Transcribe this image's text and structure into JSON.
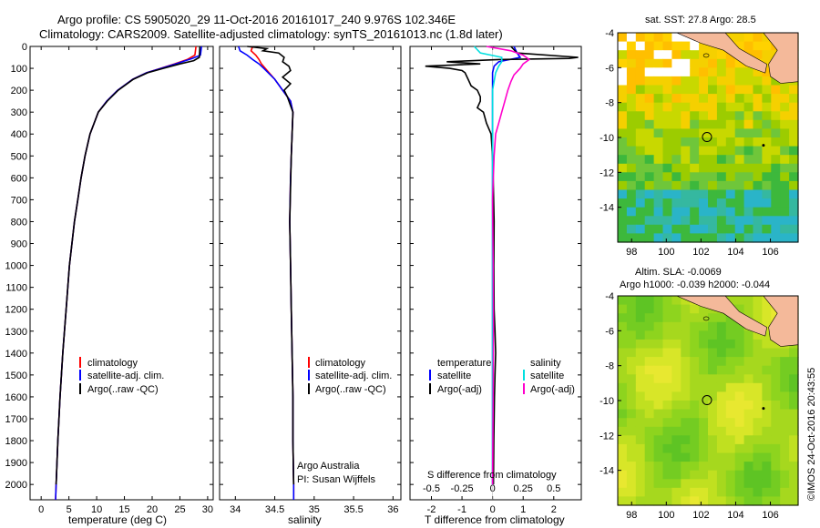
{
  "title_line1": "Argo profile: CS 5905020_29 11-Oct-2016 20161017_240 9.976S 102.346E",
  "title_line2": "Climatology: CARS2009. Satellite-adjusted climatology: synTS_20161013.nc (1.8d later)",
  "footer_credit": "©IMOS 24-Oct-2016 20:43:55",
  "colors": {
    "climatology": "#ff0000",
    "satellite": "#0000ff",
    "argo": "#000000",
    "satellite_salinity": "#00e0e0",
    "argo_salinity_adj": "#ff00cc",
    "land": "#f4b99a"
  },
  "chart_data": [
    {
      "id": "temperature",
      "type": "line",
      "xlabel": "temperature (deg C)",
      "ylabel": "",
      "xlim": [
        -2,
        31
      ],
      "ylim": [
        2070,
        0
      ],
      "xticks": [
        0,
        5,
        10,
        15,
        20,
        25,
        30
      ],
      "yticks": [
        0,
        100,
        200,
        300,
        400,
        500,
        600,
        700,
        800,
        900,
        1000,
        1100,
        1200,
        1300,
        1400,
        1500,
        1600,
        1700,
        1800,
        1900,
        2000
      ],
      "legend": [
        "climatology",
        "satellite-adj. clim.",
        "Argo(..raw -QC)"
      ],
      "legend_position": "lower-center",
      "series": [
        {
          "name": "climatology",
          "color": "#ff0000",
          "y": [
            0,
            40,
            60,
            80,
            100,
            120,
            150,
            200,
            250,
            300,
            400,
            500,
            600,
            700,
            800,
            1000,
            1200,
            1400,
            1600,
            1800,
            2000,
            2070
          ],
          "x": [
            27.9,
            27.7,
            26.3,
            24.0,
            21.5,
            19.0,
            16.5,
            13.8,
            11.8,
            10.3,
            8.8,
            7.9,
            7.2,
            6.6,
            6.0,
            5.1,
            4.5,
            3.9,
            3.4,
            3.0,
            2.7,
            2.6
          ]
        },
        {
          "name": "satellite-adj. clim.",
          "color": "#0000ff",
          "y": [
            0,
            40,
            55,
            80,
            100,
            120,
            150,
            200,
            250,
            300,
            400,
            500,
            600,
            700,
            800,
            1000,
            1200,
            1400,
            1600,
            1800,
            2000,
            2070
          ],
          "x": [
            28.9,
            28.7,
            27.2,
            24.2,
            21.6,
            19.0,
            16.5,
            13.8,
            11.8,
            10.3,
            8.8,
            7.9,
            7.2,
            6.6,
            6.0,
            5.1,
            4.5,
            3.9,
            3.4,
            3.0,
            2.7,
            2.6
          ]
        },
        {
          "name": "Argo(..raw -QC)",
          "color": "#000000",
          "y": [
            0,
            50,
            65,
            80,
            100,
            120,
            150,
            200,
            250,
            300,
            400,
            500,
            600,
            700,
            800,
            1000,
            1200,
            1400,
            1600,
            1800,
            2000
          ],
          "x": [
            28.6,
            28.5,
            27.5,
            25.0,
            22.0,
            19.2,
            16.6,
            13.9,
            11.9,
            10.3,
            8.8,
            7.9,
            7.2,
            6.6,
            6.0,
            5.1,
            4.5,
            3.9,
            3.4,
            3.0,
            2.7
          ]
        }
      ]
    },
    {
      "id": "salinity",
      "type": "line",
      "xlabel": "salinity",
      "ylabel": "",
      "xlim": [
        33.8,
        36.1
      ],
      "ylim": [
        2070,
        0
      ],
      "xticks": [
        34,
        34.5,
        35,
        35.5,
        36
      ],
      "legend": [
        "climatology",
        "satellite-adj. clim.",
        "Argo(..raw -QC)"
      ],
      "legend_position": "lower-right",
      "annotations": [
        "Argo Australia",
        "PI: Susan Wijffels"
      ],
      "series": [
        {
          "name": "climatology",
          "color": "#ff0000",
          "y": [
            0,
            20,
            40,
            60,
            80,
            100,
            150,
            200,
            250,
            300,
            400,
            500,
            600,
            800,
            1000,
            1200,
            1400,
            1600,
            1800,
            2000,
            2070
          ],
          "x": [
            34.22,
            34.2,
            34.26,
            34.3,
            34.33,
            34.38,
            34.5,
            34.6,
            34.7,
            34.73,
            34.72,
            34.71,
            34.7,
            34.69,
            34.7,
            34.71,
            34.72,
            34.73,
            34.73,
            34.74,
            34.74
          ]
        },
        {
          "name": "satellite-adj. clim.",
          "color": "#0000ff",
          "y": [
            0,
            20,
            40,
            60,
            80,
            100,
            150,
            200,
            250,
            300,
            400,
            500,
            600,
            800,
            1000,
            1200,
            1400,
            1600,
            1800,
            2000,
            2070
          ],
          "x": [
            34.04,
            34.06,
            34.15,
            34.22,
            34.3,
            34.36,
            34.5,
            34.6,
            34.7,
            34.73,
            34.72,
            34.71,
            34.7,
            34.69,
            34.7,
            34.71,
            34.72,
            34.73,
            34.73,
            34.74,
            34.74
          ]
        },
        {
          "name": "Argo(..raw -QC)",
          "color": "#000000",
          "y": [
            0,
            10,
            20,
            30,
            50,
            70,
            90,
            110,
            140,
            170,
            200,
            230,
            260,
            300,
            400,
            500,
            800,
            1000,
            1200,
            1400,
            1600,
            1800,
            2000
          ],
          "x": [
            34.15,
            34.4,
            34.35,
            34.55,
            34.62,
            34.6,
            34.68,
            34.7,
            34.6,
            34.7,
            34.62,
            34.66,
            34.69,
            34.73,
            34.72,
            34.71,
            34.69,
            34.7,
            34.71,
            34.72,
            34.73,
            34.73,
            34.74
          ]
        }
      ]
    },
    {
      "id": "difference",
      "type": "line",
      "xlabel": "T difference from climatology",
      "xlabel_top": "S difference from climatology",
      "xlim": [
        -2.7,
        2.9
      ],
      "ylim": [
        2070,
        0
      ],
      "xticks_bottom": [
        -2,
        -1,
        0,
        1,
        2
      ],
      "xticks_top_labels": [
        "-0.5",
        "-0.25",
        "0",
        "0.25",
        "0.5"
      ],
      "xticks_top_positions": [
        -2,
        -1,
        0,
        1,
        2
      ],
      "legend_temperature": {
        "heading": "temperature",
        "items": [
          "satellite",
          "Argo(-adj)"
        ]
      },
      "legend_salinity": {
        "heading": "salinity",
        "items": [
          "satellite",
          "Argo(-adj)"
        ]
      },
      "series": [
        {
          "name": "temperature satellite",
          "color": "#0000ff",
          "y": [
            0,
            30,
            50,
            70,
            90,
            120,
            200,
            300,
            400,
            600,
            1000,
            1500,
            2000
          ],
          "x": [
            0.7,
            0.8,
            0.9,
            0.2,
            0.05,
            0.0,
            0.0,
            0.0,
            0.0,
            0.0,
            0.0,
            0.0,
            0.0
          ]
        },
        {
          "name": "temperature Argo(-adj)",
          "color": "#000000",
          "y": [
            0,
            30,
            50,
            55,
            60,
            65,
            70,
            80,
            90,
            100,
            110,
            120,
            150,
            180,
            200,
            230,
            250,
            280,
            300,
            350,
            400,
            500,
            600,
            800,
            1000,
            1200,
            1300,
            1400,
            1500,
            1600,
            1800,
            2000
          ],
          "x": [
            0.6,
            0.8,
            2.8,
            2.5,
            0.2,
            -0.6,
            -1.5,
            -0.4,
            -2.2,
            -1.4,
            -1.0,
            -0.9,
            -0.8,
            -0.7,
            -0.5,
            -0.4,
            -0.4,
            -0.5,
            -0.3,
            -0.2,
            -0.05,
            0.0,
            0.02,
            0.05,
            0.04,
            0.05,
            0.08,
            0.1,
            0.08,
            0.06,
            0.04,
            0.03
          ]
        },
        {
          "name": "salinity satellite",
          "color": "#00e0e0",
          "y": [
            0,
            30,
            50,
            70,
            90,
            120,
            200,
            300,
            400,
            600,
            1000,
            1500,
            2000
          ],
          "x": [
            -0.6,
            -0.4,
            0.3,
            0.3,
            0.2,
            0.1,
            0.0,
            0.0,
            0.0,
            0.0,
            0.0,
            0.0,
            0.0
          ]
        },
        {
          "name": "salinity Argo(-adj)",
          "color": "#ff00cc",
          "y": [
            0,
            20,
            40,
            60,
            80,
            100,
            130,
            160,
            200,
            250,
            300,
            350,
            400,
            500,
            700,
            1000,
            1300,
            1600,
            2000
          ],
          "x": [
            -0.2,
            0.6,
            1.0,
            1.2,
            1.0,
            0.9,
            0.7,
            0.6,
            0.5,
            0.4,
            0.3,
            0.2,
            0.1,
            0.05,
            0.0,
            0.02,
            0.03,
            0.02,
            0.0
          ]
        }
      ]
    },
    {
      "id": "sst_map",
      "type": "heatmap",
      "title": "sat. SST: 27.8 Argo: 28.5",
      "xlim": [
        97.2,
        107.6
      ],
      "ylim": [
        -16,
        -4
      ],
      "xticks": [
        98,
        100,
        102,
        104,
        106
      ],
      "yticks": [
        -4,
        -6,
        -8,
        -10,
        -12,
        -14
      ],
      "profile_marker": {
        "lon": 102.346,
        "lat": -9.976
      }
    },
    {
      "id": "sla_map",
      "type": "heatmap",
      "title": "Altim. SLA: -0.0069",
      "subtitle": "Argo h1000: -0.039 h2000: -0.044",
      "xlim": [
        97.2,
        107.6
      ],
      "ylim": [
        -16,
        -4
      ],
      "xticks": [
        98,
        100,
        102,
        104,
        106
      ],
      "yticks": [
        -4,
        -6,
        -8,
        -10,
        -12,
        -14
      ],
      "profile_marker": {
        "lon": 102.346,
        "lat": -9.976
      }
    }
  ]
}
